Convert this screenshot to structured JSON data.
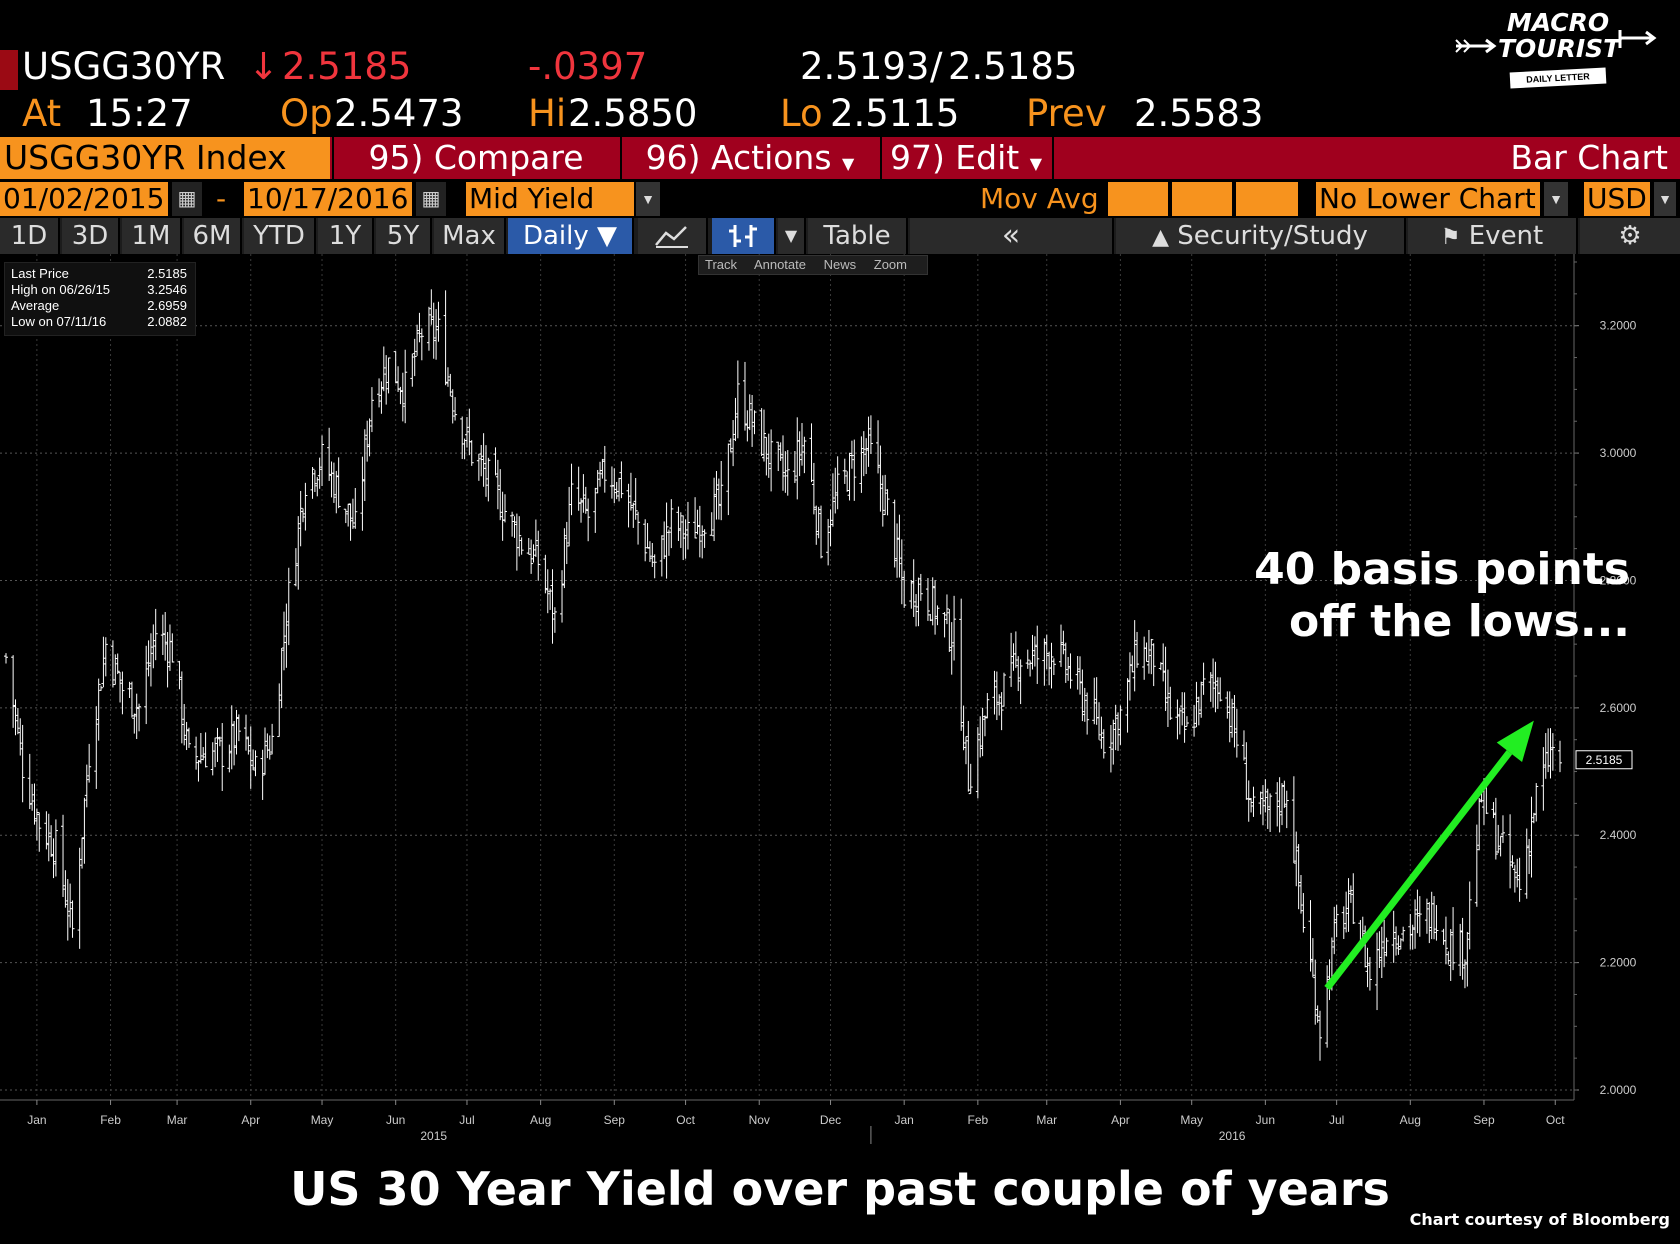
{
  "quote": {
    "ticker": "USGG30YR",
    "arrow": "↓",
    "last": "2.5185",
    "change": "-.0397",
    "bid_ask": "2.5193",
    "bid_ask_sep": "/",
    "bid_ask2": "2.5185",
    "at_label": "At",
    "time": "15:27",
    "op_label": "Op",
    "open": "2.5473",
    "hi_label": "Hi",
    "high": "2.5850",
    "lo_label": "Lo",
    "low": "2.5115",
    "prev_label": "Prev",
    "prev": "2.5583"
  },
  "logo": {
    "line1": "MACRO",
    "line2": "TOURIST",
    "sub": "DAILY LETTER"
  },
  "toolbar": {
    "index": "USGG30YR Index",
    "compare": "95) Compare",
    "actions": "96) Actions",
    "edit": "97) Edit",
    "chart_type": "Bar Chart",
    "start_date": "01/02/2015",
    "dash": "-",
    "end_date": "10/17/2016",
    "field": "Mid Yield",
    "mov_avg": "Mov Avg",
    "lower_chart": "No Lower Chart",
    "currency": "USD",
    "ranges": [
      "1D",
      "3D",
      "1M",
      "6M",
      "YTD",
      "1Y",
      "5Y",
      "Max"
    ],
    "period": "Daily ▼",
    "table": "Table",
    "collapse": "«",
    "security_study": "Security/Study",
    "event": "Event",
    "tools": [
      "Track",
      "Annotate",
      "News",
      "Zoom"
    ]
  },
  "legend": {
    "rows": [
      {
        "label": "Last Price",
        "value": "2.5185"
      },
      {
        "label": "High on 06/26/15",
        "value": "3.2546"
      },
      {
        "label": "Average",
        "value": "2.6959"
      },
      {
        "label": "Low on 07/11/16",
        "value": "2.0882"
      }
    ]
  },
  "annotation": {
    "line1": "40 basis points",
    "line2": "off the lows..."
  },
  "caption": "US 30 Year Yield over past couple of years",
  "credit": "Chart courtesy of Bloomberg",
  "colors": {
    "background": "#000000",
    "bars": "#ffffff",
    "arrow": "#22ee22",
    "orange": "#f7931e",
    "red": "#f0353d",
    "toolbar_red": "#a0001e"
  },
  "chart_data": {
    "type": "bar",
    "subtype": "ohlc",
    "series_name": "USGG30YR",
    "ylim": [
      2.0,
      3.3
    ],
    "yticks": [
      "3.2000",
      "3.0000",
      "2.8000",
      "2.6000",
      "2.4000",
      "2.2000",
      "2.0000"
    ],
    "ytick_values": [
      3.2,
      3.0,
      2.8,
      2.6,
      2.4,
      2.2,
      2.0
    ],
    "last_label": "2.5185",
    "last_value": 2.5185,
    "x_range": [
      "2015-01-02",
      "2016-10-17"
    ],
    "month_labels": [
      "Jan",
      "Feb",
      "Mar",
      "Apr",
      "May",
      "Jun",
      "Jul",
      "Aug",
      "Sep",
      "Oct",
      "Nov",
      "Dec",
      "Jan",
      "Feb",
      "Mar",
      "Apr",
      "May",
      "Jun",
      "Jul",
      "Aug",
      "Sep",
      "Oct"
    ],
    "month_dates": [
      "2015-01-15",
      "2015-02-15",
      "2015-03-15",
      "2015-04-15",
      "2015-05-15",
      "2015-06-15",
      "2015-07-15",
      "2015-08-15",
      "2015-09-15",
      "2015-10-15",
      "2015-11-15",
      "2015-12-15",
      "2016-01-15",
      "2016-02-15",
      "2016-03-15",
      "2016-04-15",
      "2016-05-15",
      "2016-06-15",
      "2016-07-15",
      "2016-08-15",
      "2016-09-15",
      "2016-10-15"
    ],
    "year_labels": [
      {
        "label": "2015",
        "date": "2015-07-01"
      },
      {
        "label": "2016",
        "date": "2016-06-01"
      }
    ],
    "year_divider": "2016-01-01",
    "close_anchors": [
      [
        "2015-01-02",
        2.68
      ],
      [
        "2015-01-09",
        2.51
      ],
      [
        "2015-01-16",
        2.42
      ],
      [
        "2015-01-23",
        2.38
      ],
      [
        "2015-01-30",
        2.25
      ],
      [
        "2015-02-06",
        2.53
      ],
      [
        "2015-02-13",
        2.7
      ],
      [
        "2015-02-20",
        2.63
      ],
      [
        "2015-02-27",
        2.6
      ],
      [
        "2015-03-06",
        2.72
      ],
      [
        "2015-03-13",
        2.69
      ],
      [
        "2015-03-20",
        2.52
      ],
      [
        "2015-03-27",
        2.53
      ],
      [
        "2015-04-03",
        2.53
      ],
      [
        "2015-04-10",
        2.56
      ],
      [
        "2015-04-17",
        2.5
      ],
      [
        "2015-04-24",
        2.55
      ],
      [
        "2015-04-30",
        2.75
      ],
      [
        "2015-05-08",
        2.96
      ],
      [
        "2015-05-15",
        2.99
      ],
      [
        "2015-05-22",
        2.94
      ],
      [
        "2015-05-29",
        2.88
      ],
      [
        "2015-06-05",
        3.09
      ],
      [
        "2015-06-12",
        3.14
      ],
      [
        "2015-06-19",
        3.1
      ],
      [
        "2015-06-26",
        3.19
      ],
      [
        "2015-07-03",
        3.19
      ],
      [
        "2015-07-10",
        3.07
      ],
      [
        "2015-07-17",
        3.0
      ],
      [
        "2015-07-24",
        2.96
      ],
      [
        "2015-07-31",
        2.91
      ],
      [
        "2015-08-07",
        2.86
      ],
      [
        "2015-08-14",
        2.83
      ],
      [
        "2015-08-21",
        2.74
      ],
      [
        "2015-08-28",
        2.93
      ],
      [
        "2015-09-04",
        2.9
      ],
      [
        "2015-09-11",
        2.97
      ],
      [
        "2015-09-18",
        2.95
      ],
      [
        "2015-09-25",
        2.89
      ],
      [
        "2015-10-02",
        2.82
      ],
      [
        "2015-10-09",
        2.89
      ],
      [
        "2015-10-16",
        2.87
      ],
      [
        "2015-10-23",
        2.9
      ],
      [
        "2015-10-30",
        2.92
      ],
      [
        "2015-11-06",
        3.09
      ],
      [
        "2015-11-13",
        3.04
      ],
      [
        "2015-11-20",
        2.99
      ],
      [
        "2015-11-27",
        2.96
      ],
      [
        "2015-12-04",
        3.02
      ],
      [
        "2015-12-11",
        2.86
      ],
      [
        "2015-12-18",
        2.94
      ],
      [
        "2015-12-24",
        2.98
      ],
      [
        "2015-12-31",
        3.01
      ],
      [
        "2016-01-08",
        2.91
      ],
      [
        "2016-01-15",
        2.78
      ],
      [
        "2016-01-22",
        2.79
      ],
      [
        "2016-01-29",
        2.75
      ],
      [
        "2016-02-05",
        2.71
      ],
      [
        "2016-02-11",
        2.49
      ],
      [
        "2016-02-19",
        2.6
      ],
      [
        "2016-02-26",
        2.63
      ],
      [
        "2016-03-04",
        2.68
      ],
      [
        "2016-03-11",
        2.68
      ],
      [
        "2016-03-18",
        2.69
      ],
      [
        "2016-03-24",
        2.66
      ],
      [
        "2016-03-31",
        2.61
      ],
      [
        "2016-04-08",
        2.55
      ],
      [
        "2016-04-15",
        2.59
      ],
      [
        "2016-04-22",
        2.69
      ],
      [
        "2016-04-29",
        2.68
      ],
      [
        "2016-05-06",
        2.59
      ],
      [
        "2016-05-13",
        2.56
      ],
      [
        "2016-05-20",
        2.63
      ],
      [
        "2016-05-27",
        2.64
      ],
      [
        "2016-06-03",
        2.55
      ],
      [
        "2016-06-10",
        2.43
      ],
      [
        "2016-06-17",
        2.44
      ],
      [
        "2016-06-24",
        2.47
      ],
      [
        "2016-06-30",
        2.29
      ],
      [
        "2016-07-08",
        2.1
      ],
      [
        "2016-07-15",
        2.26
      ],
      [
        "2016-07-22",
        2.29
      ],
      [
        "2016-07-29",
        2.18
      ],
      [
        "2016-08-05",
        2.25
      ],
      [
        "2016-08-12",
        2.25
      ],
      [
        "2016-08-19",
        2.26
      ],
      [
        "2016-08-26",
        2.28
      ],
      [
        "2016-08-31",
        2.23
      ],
      [
        "2016-09-07",
        2.22
      ],
      [
        "2016-09-14",
        2.46
      ],
      [
        "2016-09-21",
        2.39
      ],
      [
        "2016-09-30",
        2.32
      ],
      [
        "2016-10-07",
        2.46
      ],
      [
        "2016-10-13",
        2.53
      ],
      [
        "2016-10-17",
        2.5185
      ]
    ],
    "arrow": {
      "from": [
        "2016-07-11",
        2.16
      ],
      "to": [
        "2016-10-06",
        2.58
      ]
    }
  }
}
